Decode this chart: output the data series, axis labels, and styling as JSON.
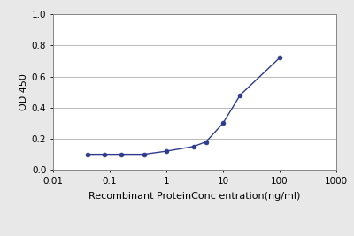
{
  "x_values": [
    0.04,
    0.08,
    0.16,
    0.4,
    1.0,
    3.0,
    5.0,
    10.0,
    20.0,
    100.0
  ],
  "y_values": [
    0.1,
    0.1,
    0.1,
    0.1,
    0.12,
    0.15,
    0.18,
    0.3,
    0.48,
    0.72
  ],
  "xlabel": "Recombinant ProteinConc entration(ng/ml)",
  "ylabel": "OD 450",
  "xlim_log": [
    -2,
    3
  ],
  "ylim": [
    0,
    1.0
  ],
  "yticks": [
    0,
    0.2,
    0.4,
    0.6,
    0.8,
    1
  ],
  "xtick_labels": [
    "0.01",
    "0.1",
    "1",
    "10",
    "100",
    "1000"
  ],
  "xtick_values": [
    0.01,
    0.1,
    1,
    10,
    100,
    1000
  ],
  "line_color": "#2E3B8B",
  "marker": "o",
  "marker_size": 3.5,
  "line_width": 1.0,
  "figure_bg_color": "#e8e8e8",
  "plot_bg_color": "#ffffff",
  "xlabel_fontsize": 8,
  "ylabel_fontsize": 8,
  "tick_fontsize": 7.5,
  "grid_color": "#b0b0b0",
  "spine_color": "#888888"
}
